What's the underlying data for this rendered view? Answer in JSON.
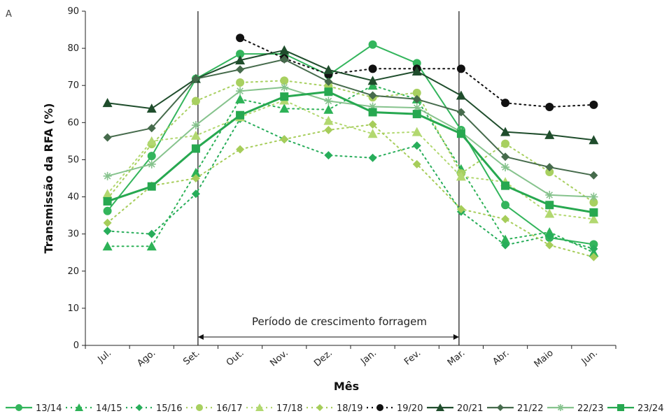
{
  "chart_data": {
    "type": "line",
    "panel_label": "A",
    "xlabel": "Mês",
    "ylabel": "Transmissão da RFA (%)",
    "ylim": [
      0,
      90
    ],
    "yticks": [
      0,
      10,
      20,
      30,
      40,
      50,
      60,
      70,
      80,
      90
    ],
    "categories": [
      "Jul.",
      "Ago.",
      "Set.",
      "Out.",
      "Nov.",
      "Dez.",
      "Jan.",
      "Fev.",
      "Mar.",
      "Abr.",
      "Maio",
      "Jun."
    ],
    "annotation": {
      "text": "Período de crescimento  forragem",
      "from_category": "Out.",
      "to_category": "Mar."
    },
    "legend_position": "bottom",
    "series": [
      {
        "name": "13/14",
        "color": "#33b55c",
        "dash": "solid",
        "marker": "circle",
        "values": [
          36.2,
          51.0,
          71.8,
          78.5,
          78.5,
          72.8,
          81.0,
          76.0,
          58.0,
          37.8,
          29.0,
          27.2
        ]
      },
      {
        "name": "14/15",
        "color": "#2db257",
        "dash": "dotted",
        "marker": "triangle",
        "values": [
          26.7,
          26.7,
          46.5,
          66.3,
          63.8,
          63.5,
          70.0,
          66.3,
          47.5,
          28.5,
          30.5,
          25.0
        ]
      },
      {
        "name": "15/16",
        "color": "#27ad5a",
        "dash": "dotted",
        "marker": "diamond",
        "values": [
          30.8,
          30.0,
          40.8,
          61.0,
          55.5,
          51.2,
          50.5,
          53.8,
          36.0,
          27.0,
          29.5,
          26.0
        ]
      },
      {
        "name": "16/17",
        "color": "#a8d060",
        "dash": "dotted",
        "marker": "circle",
        "values": [
          39.5,
          54.2,
          65.8,
          70.8,
          71.3,
          69.8,
          66.8,
          68.0,
          46.3,
          54.3,
          46.7,
          38.5
        ]
      },
      {
        "name": "17/18",
        "color": "#b2d870",
        "dash": "dotted",
        "marker": "triangle",
        "values": [
          40.8,
          55.0,
          56.5,
          61.5,
          66.0,
          60.5,
          57.0,
          57.5,
          45.5,
          44.0,
          35.5,
          34.0
        ]
      },
      {
        "name": "18/19",
        "color": "#a6cd5a",
        "dash": "dotted",
        "marker": "diamond",
        "values": [
          33.0,
          43.0,
          45.0,
          52.8,
          55.5,
          58.0,
          59.5,
          48.8,
          36.7,
          34.0,
          27.0,
          23.8
        ]
      },
      {
        "name": "19/20",
        "color": "#111111",
        "dash": "dotted",
        "marker": "circle",
        "values": [
          null,
          null,
          null,
          82.8,
          77.3,
          73.0,
          74.5,
          74.5,
          74.5,
          65.3,
          64.2,
          64.8
        ]
      },
      {
        "name": "20/21",
        "color": "#1f4d2c",
        "dash": "solid",
        "marker": "triangle",
        "values": [
          65.3,
          63.8,
          71.8,
          76.8,
          79.5,
          74.2,
          71.3,
          73.8,
          67.3,
          57.5,
          56.7,
          55.3
        ]
      },
      {
        "name": "21/22",
        "color": "#466b4c",
        "dash": "solid",
        "marker": "diamond",
        "values": [
          56.0,
          58.5,
          71.8,
          74.3,
          77.0,
          71.0,
          67.3,
          66.3,
          62.8,
          50.8,
          48.0,
          45.8
        ]
      },
      {
        "name": "22/23",
        "color": "#86c38d",
        "dash": "solid",
        "marker": "star",
        "values": [
          45.6,
          48.8,
          59.3,
          68.5,
          69.5,
          65.8,
          64.3,
          64.0,
          57.5,
          48.0,
          40.5,
          40.0
        ]
      },
      {
        "name": "23/24",
        "color": "#27a850",
        "dash": "solid",
        "marker": "square",
        "values": [
          38.8,
          42.8,
          53.0,
          62.0,
          67.0,
          68.3,
          62.8,
          62.3,
          57.0,
          43.0,
          37.8,
          35.8
        ]
      }
    ]
  }
}
